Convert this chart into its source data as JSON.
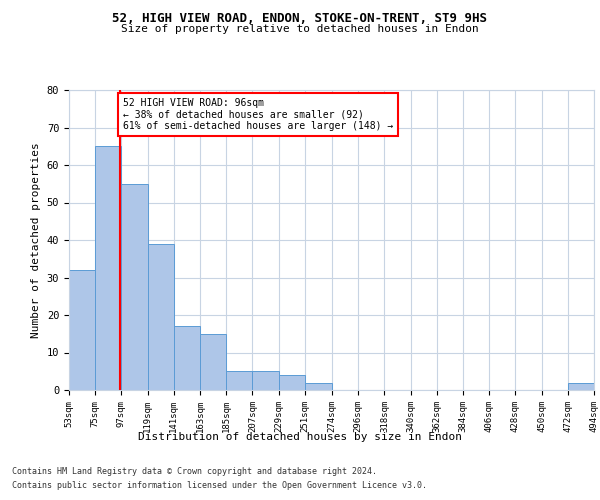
{
  "title1": "52, HIGH VIEW ROAD, ENDON, STOKE-ON-TRENT, ST9 9HS",
  "title2": "Size of property relative to detached houses in Endon",
  "xlabel": "Distribution of detached houses by size in Endon",
  "ylabel": "Number of detached properties",
  "bar_edges": [
    53,
    75,
    97,
    119,
    141,
    163,
    185,
    207,
    229,
    251,
    274,
    296,
    318,
    340,
    362,
    384,
    406,
    428,
    450,
    472,
    494
  ],
  "bar_heights": [
    32,
    65,
    55,
    39,
    17,
    15,
    5,
    5,
    4,
    2,
    0,
    0,
    0,
    0,
    0,
    0,
    0,
    0,
    0,
    2
  ],
  "bar_color": "#aec6e8",
  "bar_edge_color": "#5b9bd5",
  "property_line_x": 96,
  "annotation_text": "52 HIGH VIEW ROAD: 96sqm\n← 38% of detached houses are smaller (92)\n61% of semi-detached houses are larger (148) →",
  "annotation_box_color": "white",
  "annotation_box_edge_color": "red",
  "vline_color": "red",
  "ylim": [
    0,
    80
  ],
  "yticks": [
    0,
    10,
    20,
    30,
    40,
    50,
    60,
    70,
    80
  ],
  "xtick_labels": [
    "53sqm",
    "75sqm",
    "97sqm",
    "119sqm",
    "141sqm",
    "163sqm",
    "185sqm",
    "207sqm",
    "229sqm",
    "251sqm",
    "274sqm",
    "296sqm",
    "318sqm",
    "340sqm",
    "362sqm",
    "384sqm",
    "406sqm",
    "428sqm",
    "450sqm",
    "472sqm",
    "494sqm"
  ],
  "footer_line1": "Contains HM Land Registry data © Crown copyright and database right 2024.",
  "footer_line2": "Contains public sector information licensed under the Open Government Licence v3.0.",
  "background_color": "#ffffff",
  "grid_color": "#c8d4e3"
}
